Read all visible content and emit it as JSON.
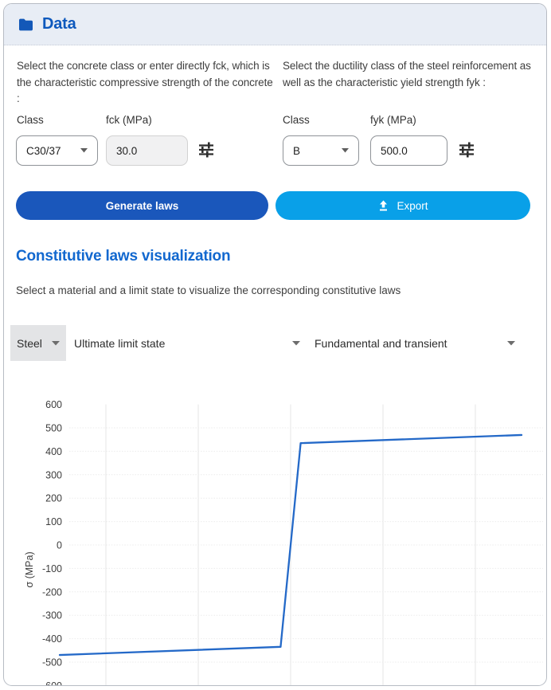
{
  "header": {
    "title": "Data"
  },
  "concrete": {
    "description": "Select the concrete class or enter directly fck, which is the characteristic compressive strength of the concrete :",
    "class_label": "Class",
    "class_value": "C30/37",
    "fck_label": "fck (MPa)",
    "fck_value": "30.0"
  },
  "steel": {
    "description": "Select the ductility class of the steel reinforcement as well as the characteristic yield strength fyk :",
    "class_label": "Class",
    "class_value": "B",
    "fyk_label": "fyk (MPa)",
    "fyk_value": "500.0"
  },
  "actions": {
    "generate_label": "Generate laws",
    "export_label": "Export"
  },
  "visualization": {
    "title": "Constitutive laws visualization",
    "subtitle": "Select a material and a limit state to visualize the corresponding constitutive laws",
    "material_select": {
      "value": "Steel"
    },
    "limit_state_select": {
      "value": "Ultimate limit state"
    },
    "combination_select": {
      "value": "Fundamental and transient"
    }
  },
  "chart_data": {
    "type": "line",
    "title": "",
    "xlabel": "",
    "ylabel": "σ (MPa)",
    "x": [
      -0.05,
      -0.00217,
      0.00217,
      0.05
    ],
    "series": [
      {
        "name": "steel-constitutive-law",
        "values": [
          -469.6,
          -434.8,
          434.8,
          469.6
        ],
        "color": "#2469c8"
      }
    ],
    "ylim": [
      -600,
      600
    ],
    "yticks": [
      600,
      500,
      400,
      300,
      200,
      100,
      0,
      -100,
      -200,
      -300,
      -400,
      -500,
      -600
    ],
    "xgrid": [
      -0.04,
      -0.02,
      0,
      0.02,
      0.04
    ],
    "xticks_visible": false,
    "grid": true,
    "legend": "none"
  },
  "colors": {
    "header_bg": "#e8edf5",
    "title_blue": "#0e59bd",
    "heading_blue": "#1268cf",
    "generate_button": "#1a57bb",
    "export_button": "#09a0e8",
    "line_blue": "#2469c8"
  }
}
